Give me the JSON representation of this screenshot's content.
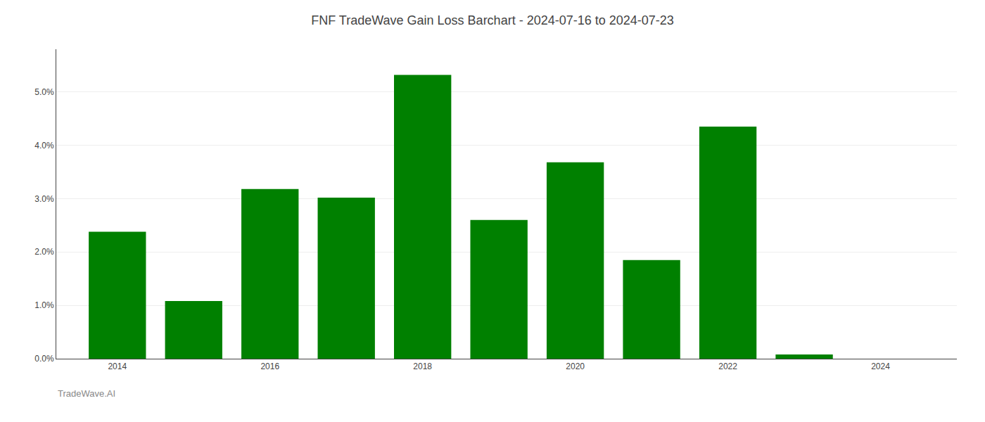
{
  "chart_data": {
    "type": "bar",
    "title": "FNF TradeWave Gain Loss Barchart - 2024-07-16 to 2024-07-23",
    "x": [
      2014,
      2015,
      2016,
      2017,
      2018,
      2019,
      2020,
      2021,
      2022,
      2023
    ],
    "values": [
      0.0238,
      0.0108,
      0.0318,
      0.0302,
      0.0532,
      0.026,
      0.0368,
      0.0185,
      0.0435,
      0.0008
    ],
    "color": "#008000",
    "xlim": [
      2013.2,
      2025.0
    ],
    "xticks": [
      2014,
      2016,
      2018,
      2020,
      2022,
      2024
    ],
    "ylim": [
      0,
      0.058
    ],
    "yticks": [
      {
        "value": 0.0,
        "label": "0.0%"
      },
      {
        "value": 0.01,
        "label": "1.0%"
      },
      {
        "value": 0.02,
        "label": "2.0%"
      },
      {
        "value": 0.03,
        "label": "3.0%"
      },
      {
        "value": 0.04,
        "label": "4.0%"
      },
      {
        "value": 0.05,
        "label": "5.0%"
      }
    ],
    "grid": true,
    "annotations": [
      {
        "text": "TradeWave.AI"
      }
    ]
  }
}
